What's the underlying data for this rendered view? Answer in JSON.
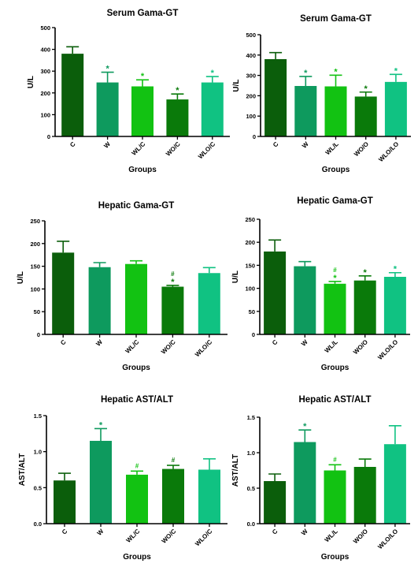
{
  "chart_data": [
    {
      "type": "bar",
      "title": "Serum Gama-GT",
      "xlabel": "Groups",
      "ylabel": "U/L",
      "ylim": [
        0,
        500
      ],
      "yticks": [
        "0",
        "100",
        "200",
        "300",
        "400",
        "500"
      ],
      "categories": [
        "C",
        "W",
        "WL/C",
        "WO/C",
        "WLO/C"
      ],
      "values": [
        380,
        248,
        230,
        170,
        248
      ],
      "errors": [
        32,
        47,
        30,
        25,
        27
      ],
      "annotations": [
        "",
        "*",
        "*",
        "*",
        "*"
      ],
      "colors": [
        "#0b5e0b",
        "#0e9a5e",
        "#12c212",
        "#0a7a0a",
        "#10c282"
      ]
    },
    {
      "type": "bar",
      "title": "Serum Gama-GT",
      "xlabel": "Groups",
      "ylabel": "U/L",
      "ylim": [
        0,
        500
      ],
      "yticks": [
        "0",
        "100",
        "200",
        "300",
        "400",
        "500"
      ],
      "categories": [
        "C",
        "W",
        "WL/L",
        "WO/O",
        "WLO/LO"
      ],
      "values": [
        380,
        248,
        246,
        196,
        268
      ],
      "errors": [
        32,
        47,
        55,
        22,
        37
      ],
      "annotations": [
        "",
        "*",
        "*",
        "*",
        "*"
      ],
      "colors": [
        "#0b5e0b",
        "#0e9a5e",
        "#12c212",
        "#0a7a0a",
        "#10c282"
      ]
    },
    {
      "type": "bar",
      "title": "Hepatic Gama-GT",
      "xlabel": "Groups",
      "ylabel": "U/L",
      "ylim": [
        0,
        250
      ],
      "yticks": [
        "0",
        "50",
        "100",
        "150",
        "200",
        "250"
      ],
      "categories": [
        "C",
        "W",
        "WL/C",
        "WO/C",
        "WLO/C"
      ],
      "values": [
        180,
        148,
        155,
        105,
        135
      ],
      "errors": [
        25,
        10,
        7,
        3,
        12
      ],
      "annotations": [
        "",
        "",
        "",
        "#\n*",
        ""
      ],
      "colors": [
        "#0b5e0b",
        "#0e9a5e",
        "#12c212",
        "#0a7a0a",
        "#10c282"
      ]
    },
    {
      "type": "bar",
      "title": "Hepatic Gama-GT",
      "xlabel": "Groups",
      "ylabel": "U/L",
      "ylim": [
        0,
        250
      ],
      "yticks": [
        "0",
        "50",
        "100",
        "150",
        "200",
        "250"
      ],
      "categories": [
        "C",
        "W",
        "WL/L",
        "WO/O",
        "WLO/LO"
      ],
      "values": [
        180,
        148,
        110,
        117,
        125
      ],
      "errors": [
        25,
        10,
        5,
        10,
        9
      ],
      "annotations": [
        "",
        "",
        "#\n*",
        "*",
        "*"
      ],
      "colors": [
        "#0b5e0b",
        "#0e9a5e",
        "#12c212",
        "#0a7a0a",
        "#10c282"
      ]
    },
    {
      "type": "bar",
      "title": "Hepatic AST/ALT",
      "xlabel": "Groups",
      "ylabel": "AST/ALT",
      "ylim": [
        0,
        1.5
      ],
      "yticks": [
        "0.0",
        "0.5",
        "1.0",
        "1.5"
      ],
      "categories": [
        "C",
        "W",
        "WL/C",
        "WO/C",
        "WLO/C"
      ],
      "values": [
        0.6,
        1.15,
        0.68,
        0.76,
        0.75
      ],
      "errors": [
        0.1,
        0.17,
        0.05,
        0.05,
        0.15
      ],
      "annotations": [
        "",
        "*",
        "#",
        "#",
        ""
      ],
      "colors": [
        "#0b5e0b",
        "#0e9a5e",
        "#12c212",
        "#0a7a0a",
        "#10c282"
      ]
    },
    {
      "type": "bar",
      "title": "Hepatic AST/ALT",
      "xlabel": "Groups",
      "ylabel": "AST/ALT",
      "ylim": [
        0,
        1.5
      ],
      "yticks": [
        "0.0",
        "0.5",
        "1.0",
        "1.5"
      ],
      "categories": [
        "C",
        "W",
        "WL/L",
        "WO/O",
        "WLO/LO"
      ],
      "values": [
        0.6,
        1.15,
        0.75,
        0.8,
        1.12
      ],
      "errors": [
        0.1,
        0.17,
        0.08,
        0.11,
        0.26
      ],
      "annotations": [
        "",
        "*",
        "#",
        "",
        ""
      ],
      "colors": [
        "#0b5e0b",
        "#0e9a5e",
        "#12c212",
        "#0a7a0a",
        "#10c282"
      ]
    }
  ]
}
